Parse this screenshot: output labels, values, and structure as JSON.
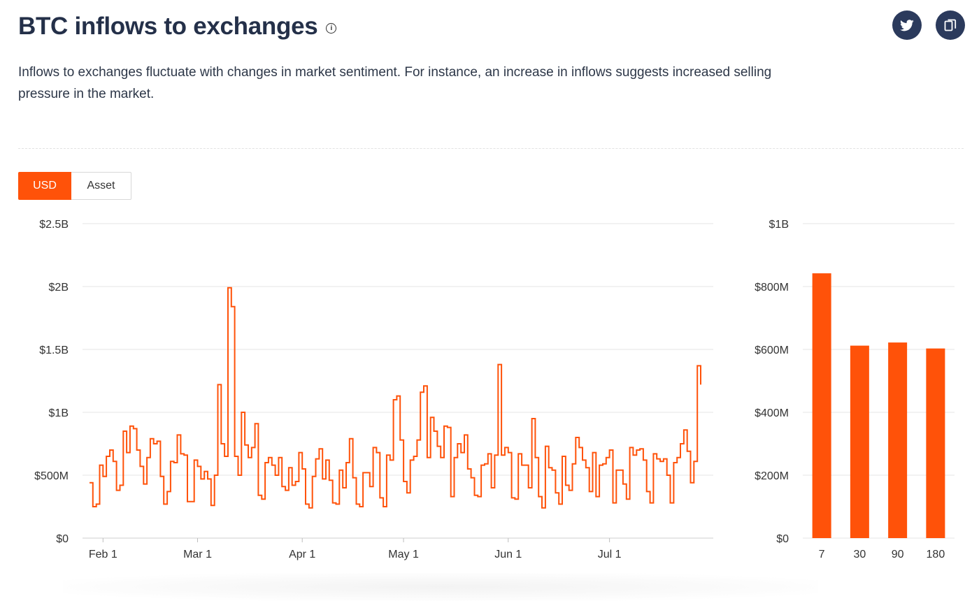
{
  "header": {
    "title": "BTC inflows to exchanges",
    "info_icon": "info-icon",
    "description": "Inflows to exchanges fluctuate with changes in market sentiment. For instance, an increase in inflows suggests increased selling pressure in the market."
  },
  "share": {
    "twitter_icon": "twitter-icon",
    "copy_icon": "copy-icon"
  },
  "toggle": {
    "usd_label": "USD",
    "asset_label": "Asset",
    "selected": "USD"
  },
  "colors": {
    "accent": "#ff5209",
    "title": "#243049",
    "share_bg": "#2b3a5c",
    "grid": "#e4e4e4"
  },
  "chart_data": [
    {
      "type": "line",
      "step": true,
      "title": "",
      "xlabel": "",
      "ylabel": "",
      "ylim": [
        0,
        2.5
      ],
      "y_unit": "billion USD",
      "y_ticks": [
        0,
        0.5,
        1,
        1.5,
        2,
        2.5
      ],
      "y_tick_labels": [
        "$0",
        "$500M",
        "$1B",
        "$1.5B",
        "$2B",
        "$2.5B"
      ],
      "x_start": "2023-01-28",
      "x_end": "2023-07-28",
      "x_ticks": [
        "2023-02-01",
        "2023-03-01",
        "2023-04-01",
        "2023-05-01",
        "2023-06-01",
        "2023-07-01"
      ],
      "x_tick_labels": [
        "Feb 1",
        "Mar 1",
        "Apr 1",
        "May 1",
        "Jun 1",
        "Jul 1"
      ],
      "grid": true,
      "series": [
        {
          "values": [
            0.44,
            0.25,
            0.27,
            0.58,
            0.49,
            0.65,
            0.7,
            0.61,
            0.38,
            0.42,
            0.85,
            0.68,
            0.89,
            0.87,
            0.7,
            0.57,
            0.43,
            0.64,
            0.79,
            0.75,
            0.77,
            0.49,
            0.27,
            0.37,
            0.61,
            0.6,
            0.82,
            0.67,
            0.66,
            0.29,
            0.29,
            0.62,
            0.57,
            0.47,
            0.53,
            0.47,
            0.26,
            0.5,
            1.22,
            0.75,
            0.65,
            1.99,
            1.84,
            0.65,
            0.5,
            1.0,
            0.74,
            0.64,
            0.72,
            0.91,
            0.34,
            0.31,
            0.6,
            0.64,
            0.58,
            0.5,
            0.64,
            0.41,
            0.38,
            0.56,
            0.42,
            0.45,
            0.68,
            0.55,
            0.27,
            0.24,
            0.49,
            0.63,
            0.71,
            0.47,
            0.62,
            0.46,
            0.28,
            0.27,
            0.54,
            0.4,
            0.6,
            0.79,
            0.48,
            0.27,
            0.25,
            0.52,
            0.52,
            0.41,
            0.72,
            0.68,
            0.32,
            0.25,
            0.66,
            0.62,
            1.1,
            1.13,
            0.78,
            0.45,
            0.36,
            0.62,
            0.65,
            0.78,
            1.16,
            1.21,
            0.64,
            0.96,
            0.85,
            0.73,
            0.64,
            0.89,
            0.88,
            0.33,
            0.64,
            0.75,
            0.68,
            0.82,
            0.55,
            0.48,
            0.34,
            0.33,
            0.58,
            0.59,
            0.67,
            0.4,
            0.66,
            1.38,
            0.66,
            0.72,
            0.68,
            0.32,
            0.31,
            0.67,
            0.58,
            0.58,
            0.4,
            0.95,
            0.64,
            0.33,
            0.24,
            0.73,
            0.56,
            0.54,
            0.36,
            0.27,
            0.65,
            0.42,
            0.38,
            0.59,
            0.8,
            0.72,
            0.62,
            0.56,
            0.37,
            0.68,
            0.33,
            0.58,
            0.59,
            0.64,
            0.7,
            0.28,
            0.54,
            0.54,
            0.43,
            0.31,
            0.72,
            0.66,
            0.7,
            0.71,
            0.62,
            0.37,
            0.28,
            0.67,
            0.63,
            0.61,
            0.63,
            0.5,
            0.28,
            0.6,
            0.64,
            0.75,
            0.86,
            0.69,
            0.44,
            0.61,
            1.37,
            1.22
          ]
        }
      ]
    },
    {
      "type": "bar",
      "title": "",
      "xlabel": "",
      "ylabel": "",
      "categories": [
        "7",
        "30",
        "90",
        "180"
      ],
      "values": [
        842,
        612,
        622,
        603
      ],
      "y_unit": "million USD",
      "ylim": [
        0,
        1000
      ],
      "y_ticks": [
        0,
        200,
        400,
        600,
        800,
        1000
      ],
      "y_tick_labels": [
        "$0",
        "$200M",
        "$400M",
        "$600M",
        "$800M",
        "$1B"
      ],
      "grid": true
    }
  ]
}
